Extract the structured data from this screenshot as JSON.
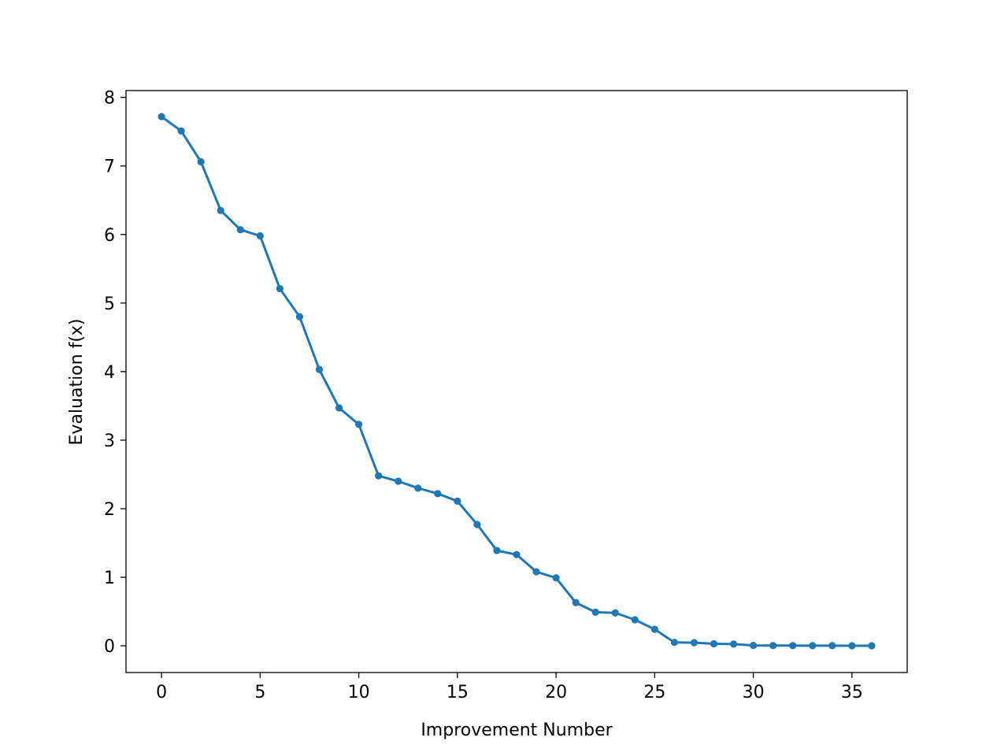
{
  "chart_data": {
    "type": "line",
    "title": "",
    "xlabel": "Improvement Number",
    "ylabel": "Evaluation f(x)",
    "xlim": [
      -1.8,
      37.8
    ],
    "ylim": [
      -0.39,
      8.1
    ],
    "xticks": [
      0,
      5,
      10,
      15,
      20,
      25,
      30,
      35
    ],
    "yticks": [
      0,
      1,
      2,
      3,
      4,
      5,
      6,
      7,
      8
    ],
    "grid": false,
    "marker": "circle",
    "series_color": "#1f77b4",
    "series": [
      {
        "x": [
          0,
          1,
          2,
          3,
          4,
          5,
          6,
          7,
          8,
          9,
          10,
          11,
          12,
          13,
          14,
          15,
          16,
          17,
          18,
          19,
          20,
          21,
          22,
          23,
          24,
          25,
          26,
          27,
          28,
          29,
          30,
          31,
          32,
          33,
          34,
          35,
          36
        ],
        "values": [
          7.72,
          7.51,
          7.06,
          6.35,
          6.07,
          5.98,
          5.21,
          4.8,
          4.03,
          3.47,
          3.23,
          2.48,
          2.4,
          2.3,
          2.22,
          2.11,
          1.77,
          1.39,
          1.33,
          1.08,
          0.99,
          0.63,
          0.49,
          0.48,
          0.38,
          0.24,
          0.05,
          0.045,
          0.03,
          0.025,
          0.005,
          0.004,
          0.003,
          0.002,
          0.002,
          0.001,
          0.001
        ]
      }
    ]
  }
}
